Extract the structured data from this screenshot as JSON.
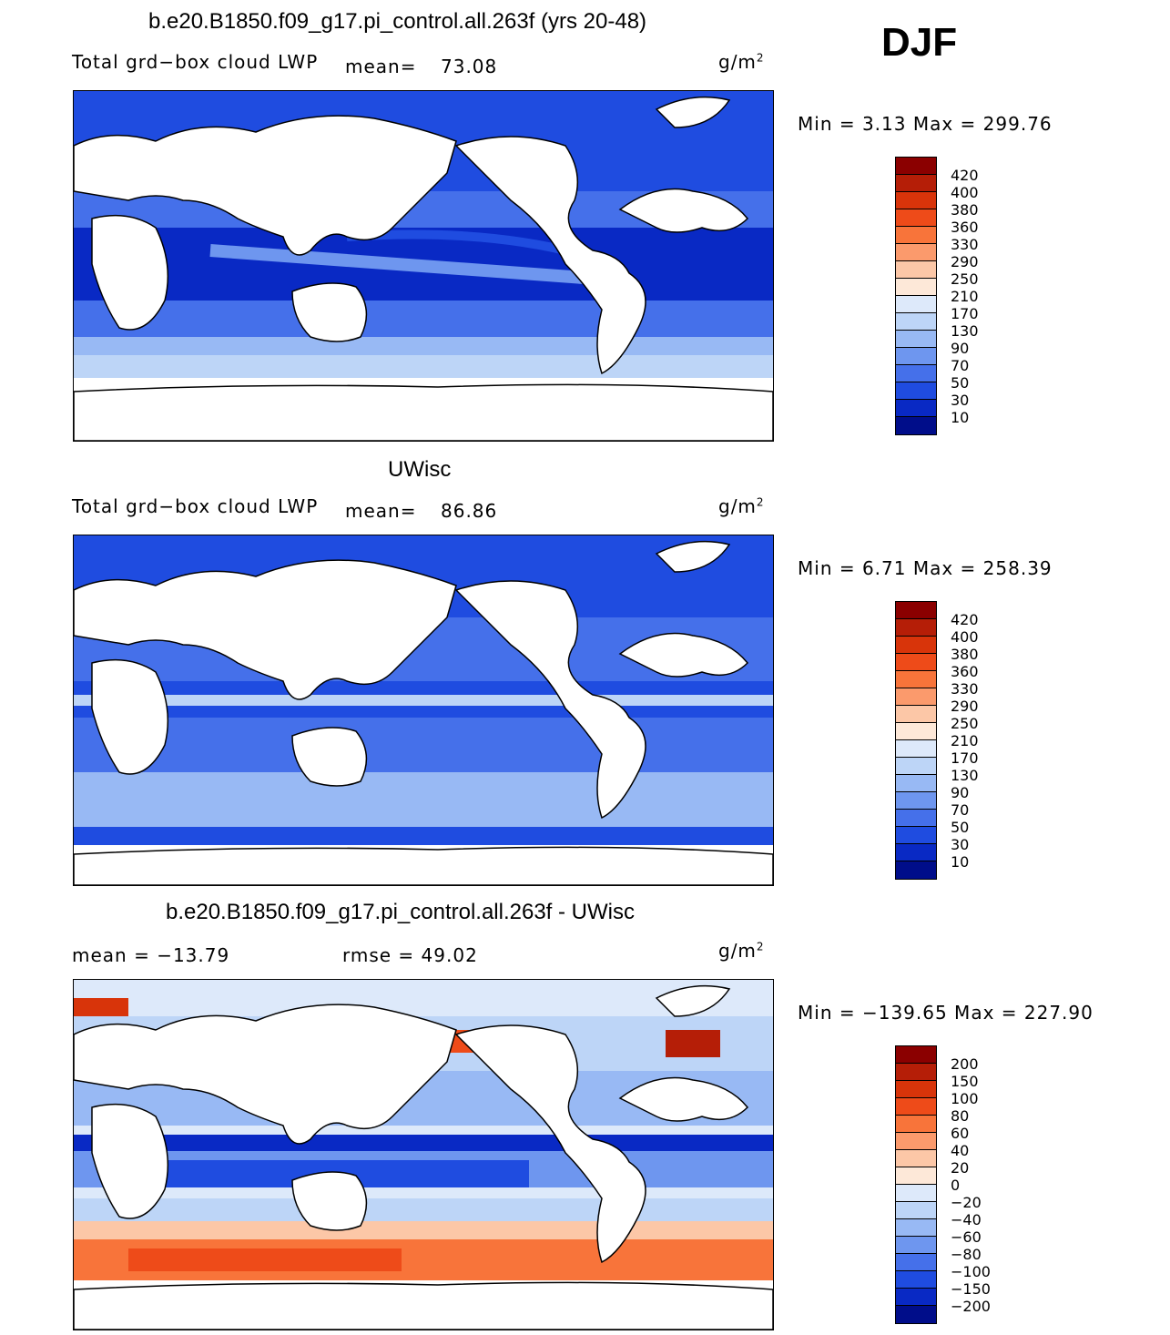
{
  "season": "DJF",
  "panels": [
    {
      "id": "model",
      "title": "b.e20.B1850.f09_g17.pi_control.all.263f (yrs 20-48)",
      "variable": "Total grd−box cloud LWP",
      "mean_label": "mean=",
      "mean_value": "73.08",
      "units": "g/m",
      "units_sup": "2",
      "minmax": "Min =    3.13 Max = 299.76",
      "colorbar_labels": [
        "420",
        "400",
        "380",
        "360",
        "330",
        "290",
        "250",
        "210",
        "170",
        "130",
        "90",
        "70",
        "50",
        "30",
        "10"
      ],
      "colors": [
        "#8b0000",
        "#b51e07",
        "#d8340a",
        "#ee4b19",
        "#f8743a",
        "#fb9a6c",
        "#fcc7a7",
        "#fde8d8",
        "#dde9fa",
        "#bdd5f7",
        "#98b9f4",
        "#6e96ef",
        "#4570ea",
        "#1f4ce0",
        "#0929c4",
        "#000d8a"
      ]
    },
    {
      "id": "obs",
      "title": "UWisc",
      "variable": "Total grd−box cloud LWP",
      "mean_label": "mean=",
      "mean_value": "86.86",
      "units": "g/m",
      "units_sup": "2",
      "minmax": "Min =    6.71 Max = 258.39",
      "colorbar_labels": [
        "420",
        "400",
        "380",
        "360",
        "330",
        "290",
        "250",
        "210",
        "170",
        "130",
        "90",
        "70",
        "50",
        "30",
        "10"
      ],
      "colors": [
        "#8b0000",
        "#b51e07",
        "#d8340a",
        "#ee4b19",
        "#f8743a",
        "#fb9a6c",
        "#fcc7a7",
        "#fde8d8",
        "#dde9fa",
        "#bdd5f7",
        "#98b9f4",
        "#6e96ef",
        "#4570ea",
        "#1f4ce0",
        "#0929c4",
        "#000d8a"
      ]
    },
    {
      "id": "diff",
      "title": "b.e20.B1850.f09_g17.pi_control.all.263f - UWisc",
      "mean_text": "mean = −13.79",
      "rmse_text": "rmse =   49.02",
      "units": "g/m",
      "units_sup": "2",
      "minmax": "Min = −139.65 Max = 227.90",
      "colorbar_labels": [
        "200",
        "150",
        "100",
        "80",
        "60",
        "40",
        "20",
        "0",
        "−20",
        "−40",
        "−60",
        "−80",
        "−100",
        "−150",
        "−200"
      ],
      "colors": [
        "#8b0000",
        "#b51e07",
        "#d8340a",
        "#ee4b19",
        "#f8743a",
        "#fb9a6c",
        "#fcc7a7",
        "#fde8d8",
        "#dde9fa",
        "#bdd5f7",
        "#98b9f4",
        "#6e96ef",
        "#4570ea",
        "#1f4ce0",
        "#0929c4",
        "#000d8a"
      ]
    }
  ]
}
